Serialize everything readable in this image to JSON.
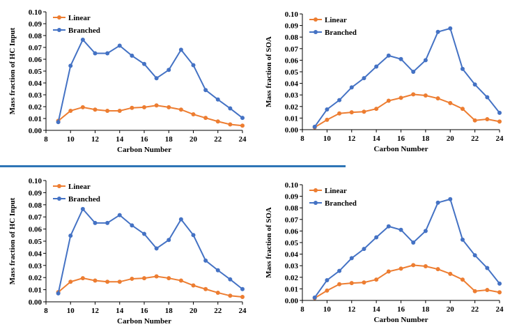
{
  "colors": {
    "linear": "#ed7d31",
    "branched": "#4472c4",
    "axis": "#000000",
    "divider": "#2e75b6"
  },
  "chart_data": [
    {
      "type": "line",
      "title": "",
      "xlabel": "Carbon Number",
      "ylabel": "Mass fraction  of HC Input",
      "xlim": [
        8,
        24
      ],
      "ylim": [
        0,
        0.1
      ],
      "x_ticks": [
        8,
        10,
        12,
        14,
        16,
        18,
        20,
        22,
        24
      ],
      "y_ticks": [
        "0.00",
        "0.01",
        "0.02",
        "0.03",
        "0.04",
        "0.05",
        "0.06",
        "0.07",
        "0.08",
        "0.09",
        "0.10"
      ],
      "x": [
        9,
        10,
        11,
        12,
        13,
        14,
        15,
        16,
        17,
        18,
        19,
        20,
        21,
        22,
        23,
        24
      ],
      "series": [
        {
          "name": "Linear",
          "color_key": "linear",
          "values": [
            0.008,
            0.0165,
            0.0195,
            0.0175,
            0.0165,
            0.0165,
            0.019,
            0.0195,
            0.021,
            0.0195,
            0.0175,
            0.0135,
            0.0105,
            0.0075,
            0.005,
            0.004
          ]
        },
        {
          "name": "Branched",
          "color_key": "branched",
          "values": [
            0.007,
            0.0545,
            0.0765,
            0.065,
            0.065,
            0.0715,
            0.063,
            0.056,
            0.044,
            0.051,
            0.068,
            0.055,
            0.034,
            0.026,
            0.0185,
            0.0105
          ]
        }
      ],
      "legend": "top-left",
      "grid": false
    },
    {
      "type": "line",
      "title": "",
      "xlabel": "Carbon Number",
      "ylabel": "Mass fraction of SOA",
      "xlim": [
        8,
        24
      ],
      "ylim": [
        0,
        0.1
      ],
      "x_ticks": [
        8,
        10,
        12,
        14,
        16,
        18,
        20,
        22,
        24
      ],
      "y_ticks": [
        "0.00",
        "0.01",
        "0.02",
        "0.03",
        "0.04",
        "0.05",
        "0.06",
        "0.07",
        "0.08",
        "0.09",
        "0.10"
      ],
      "x": [
        9,
        10,
        11,
        12,
        13,
        14,
        15,
        16,
        17,
        18,
        19,
        20,
        21,
        22,
        23,
        24
      ],
      "series": [
        {
          "name": "Linear",
          "color_key": "linear",
          "values": [
            0.002,
            0.0085,
            0.014,
            0.015,
            0.0155,
            0.018,
            0.025,
            0.0275,
            0.0305,
            0.0295,
            0.027,
            0.023,
            0.018,
            0.008,
            0.009,
            0.007
          ]
        },
        {
          "name": "Branched",
          "color_key": "branched",
          "values": [
            0.0025,
            0.0175,
            0.0255,
            0.0365,
            0.0445,
            0.0545,
            0.064,
            0.061,
            0.05,
            0.06,
            0.0845,
            0.0875,
            0.0525,
            0.039,
            0.028,
            0.0145
          ]
        }
      ],
      "legend": "top-left",
      "grid": false
    },
    {
      "type": "line",
      "title": "",
      "xlabel": "Carbon Number",
      "ylabel": "Mass fraction  of HC Input",
      "xlim": [
        8,
        24
      ],
      "ylim": [
        0,
        0.1
      ],
      "x_ticks": [
        8,
        10,
        12,
        14,
        16,
        18,
        20,
        22,
        24
      ],
      "y_ticks": [
        "0.00",
        "0.01",
        "0.02",
        "0.03",
        "0.04",
        "0.05",
        "0.06",
        "0.07",
        "0.08",
        "0.09",
        "0.10"
      ],
      "x": [
        9,
        10,
        11,
        12,
        13,
        14,
        15,
        16,
        17,
        18,
        19,
        20,
        21,
        22,
        23,
        24
      ],
      "series": [
        {
          "name": "Linear",
          "color_key": "linear",
          "values": [
            0.008,
            0.0165,
            0.0195,
            0.0175,
            0.0165,
            0.0165,
            0.019,
            0.0195,
            0.021,
            0.0195,
            0.0175,
            0.0135,
            0.0105,
            0.0075,
            0.005,
            0.004
          ]
        },
        {
          "name": "Branched",
          "color_key": "branched",
          "values": [
            0.007,
            0.0545,
            0.0765,
            0.065,
            0.065,
            0.0715,
            0.063,
            0.056,
            0.044,
            0.051,
            0.068,
            0.055,
            0.034,
            0.026,
            0.0185,
            0.0105
          ]
        }
      ],
      "legend": "top-left",
      "grid": false
    },
    {
      "type": "line",
      "title": "",
      "xlabel": "Carbon Number",
      "ylabel": "Mass fraction of SOA",
      "xlim": [
        8,
        24
      ],
      "ylim": [
        0,
        0.1
      ],
      "x_ticks": [
        8,
        10,
        12,
        14,
        16,
        18,
        20,
        22,
        24
      ],
      "y_ticks": [
        "0.00",
        "0.01",
        "0.02",
        "0.03",
        "0.04",
        "0.05",
        "0.06",
        "0.07",
        "0.08",
        "0.09",
        "0.10"
      ],
      "x": [
        9,
        10,
        11,
        12,
        13,
        14,
        15,
        16,
        17,
        18,
        19,
        20,
        21,
        22,
        23,
        24
      ],
      "series": [
        {
          "name": "Linear",
          "color_key": "linear",
          "values": [
            0.002,
            0.0085,
            0.014,
            0.015,
            0.0155,
            0.018,
            0.025,
            0.0275,
            0.0305,
            0.0295,
            0.027,
            0.023,
            0.018,
            0.008,
            0.009,
            0.007
          ]
        },
        {
          "name": "Branched",
          "color_key": "branched",
          "values": [
            0.0025,
            0.0175,
            0.0255,
            0.0365,
            0.0445,
            0.0545,
            0.064,
            0.061,
            0.05,
            0.06,
            0.0845,
            0.0875,
            0.0525,
            0.039,
            0.028,
            0.0145
          ]
        }
      ],
      "legend": "top-left",
      "grid": false
    }
  ]
}
